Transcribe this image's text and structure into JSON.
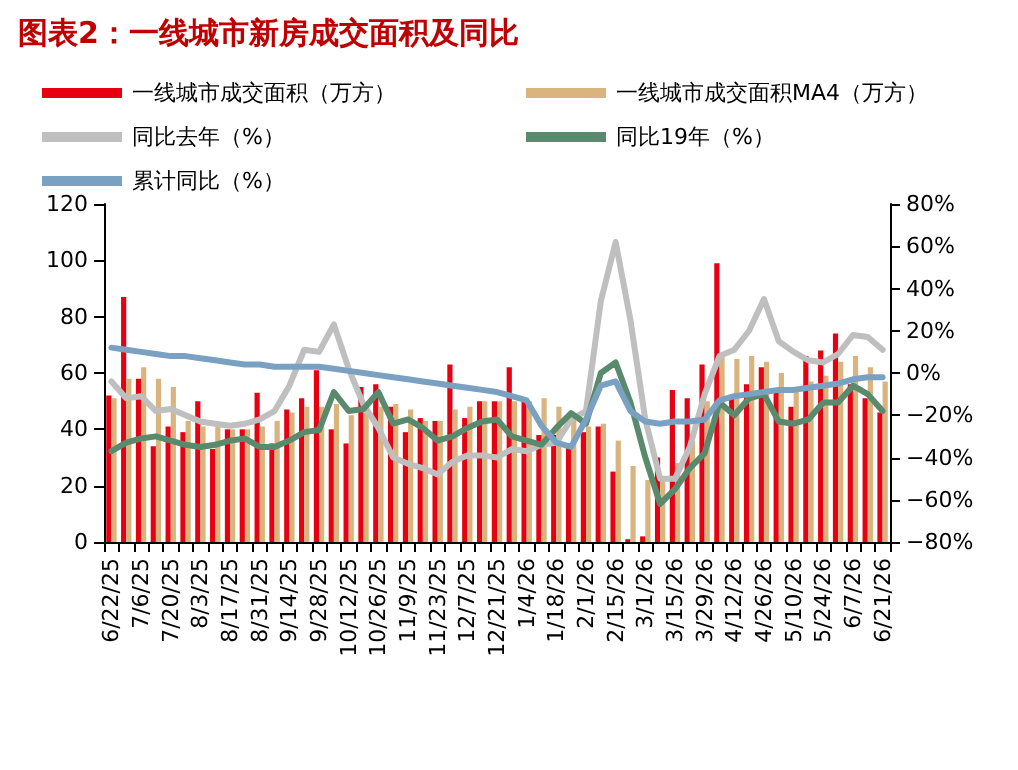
{
  "chart_data": {
    "type": "bar",
    "title": "图表2：一线城市新房成交面积及同比",
    "categories": [
      "6/22/25",
      null,
      "7/6/25",
      null,
      "7/20/25",
      null,
      "8/3/25",
      null,
      "8/17/25",
      null,
      "8/31/25",
      null,
      "9/14/25",
      null,
      "9/28/25",
      null,
      "10/12/25",
      null,
      "10/26/25",
      null,
      "11/9/25",
      null,
      "11/23/25",
      null,
      "12/7/25",
      null,
      "12/21/25",
      null,
      "1/4/26",
      null,
      "1/18/26",
      null,
      "2/1/26",
      null,
      "2/15/26",
      null,
      "3/1/26",
      null,
      "3/15/26",
      null,
      "3/29/26",
      null,
      "4/12/26",
      null,
      "4/26/26",
      null,
      "5/10/26",
      null,
      "5/24/26",
      null,
      "6/7/26",
      null,
      "6/21/26"
    ],
    "series": [
      {
        "name": "一线城市成交面积（万方）",
        "color": "#e60012",
        "values": [
          52,
          87,
          58,
          34,
          41,
          39,
          50,
          33,
          40,
          40,
          53,
          35,
          47,
          51,
          61,
          40,
          35,
          55,
          56,
          48,
          39,
          44,
          43,
          63,
          44,
          50,
          50,
          62,
          51,
          38,
          38,
          34,
          39,
          41,
          25,
          1,
          2,
          30,
          54,
          51,
          63,
          99,
          51,
          56,
          62,
          53,
          48,
          66,
          68,
          74,
          56,
          51,
          46
        ]
      },
      {
        "name": "一线城市成交面积MA4（万方）",
        "color": "#d9b47f",
        "values": [
          51,
          58,
          62,
          58,
          55,
          43,
          41,
          41,
          40,
          40,
          41,
          43,
          46,
          48,
          48,
          49,
          45,
          46,
          48,
          49,
          47,
          43,
          43,
          47,
          48,
          50,
          50,
          50,
          50,
          51,
          48,
          44,
          41,
          42,
          36,
          27,
          22,
          22,
          28,
          36,
          50,
          66,
          65,
          66,
          64,
          60,
          55,
          57,
          59,
          64,
          66,
          62,
          57
        ]
      },
      {
        "name": "同比去年（%）",
        "type": "line",
        "axis": "y2",
        "color": "#bfbfbf",
        "values": [
          -4,
          -12,
          -11,
          -18,
          -17,
          -20,
          -23,
          -24,
          -25,
          -24,
          -22,
          -18,
          -6,
          11,
          10,
          23,
          2,
          -15,
          -26,
          -40,
          -43,
          -45,
          -48,
          -42,
          -39,
          -39,
          -40,
          -36,
          -37,
          -34,
          -33,
          -22,
          -18,
          34,
          62,
          25,
          -22,
          -50,
          -50,
          -35,
          -10,
          8,
          11,
          20,
          35,
          15,
          10,
          6,
          5,
          9,
          18,
          17,
          11
        ]
      },
      {
        "name": "同比19年（%）",
        "type": "line",
        "axis": "y2",
        "color": "#5a8a6e",
        "values": [
          -37,
          -33,
          -31,
          -30,
          -32,
          -34,
          -35,
          -34,
          -32,
          -31,
          -35,
          -35,
          -32,
          -28,
          -27,
          -9,
          -18,
          -17,
          -9,
          -24,
          -22,
          -26,
          -32,
          -30,
          -26,
          -23,
          -22,
          -30,
          -32,
          -34,
          -26,
          -19,
          -24,
          0,
          5,
          -14,
          -40,
          -62,
          -55,
          -45,
          -38,
          -14,
          -20,
          -12,
          -10,
          -23,
          -24,
          -22,
          -14,
          -14,
          -6,
          -10,
          -18
        ]
      },
      {
        "name": "累计同比（%）",
        "type": "line",
        "axis": "y2",
        "color": "#7ba1c2",
        "values": [
          12,
          11,
          10,
          9,
          8,
          8,
          7,
          6,
          5,
          4,
          4,
          3,
          3,
          3,
          3,
          2,
          1,
          0,
          -1,
          -2,
          -3,
          -4,
          -5,
          -6,
          -7,
          -8,
          -9,
          -11,
          -13,
          -25,
          -33,
          -35,
          -22,
          -6,
          -4,
          -18,
          -23,
          -24,
          -23,
          -23,
          -22,
          -13,
          -11,
          -10,
          -9,
          -8,
          -8,
          -7,
          -6,
          -5,
          -3,
          -2,
          -2
        ]
      }
    ],
    "ylim": [
      0,
      120
    ],
    "yticks": [
      0,
      20,
      40,
      60,
      80,
      100,
      120
    ],
    "y2lim": [
      -80,
      80
    ],
    "y2ticks": [
      {
        "value": -80,
        "label": "−80%"
      },
      {
        "value": -60,
        "label": "−60%"
      },
      {
        "value": -40,
        "label": "−40%"
      },
      {
        "value": -20,
        "label": "−20%"
      },
      {
        "value": 0,
        "label": "0%"
      },
      {
        "value": 20,
        "label": "20%"
      },
      {
        "value": 40,
        "label": "40%"
      },
      {
        "value": 60,
        "label": "60%"
      },
      {
        "value": 80,
        "label": "80%"
      }
    ],
    "grid": false,
    "legend": "top",
    "marker": "none",
    "line_style": "solid"
  }
}
